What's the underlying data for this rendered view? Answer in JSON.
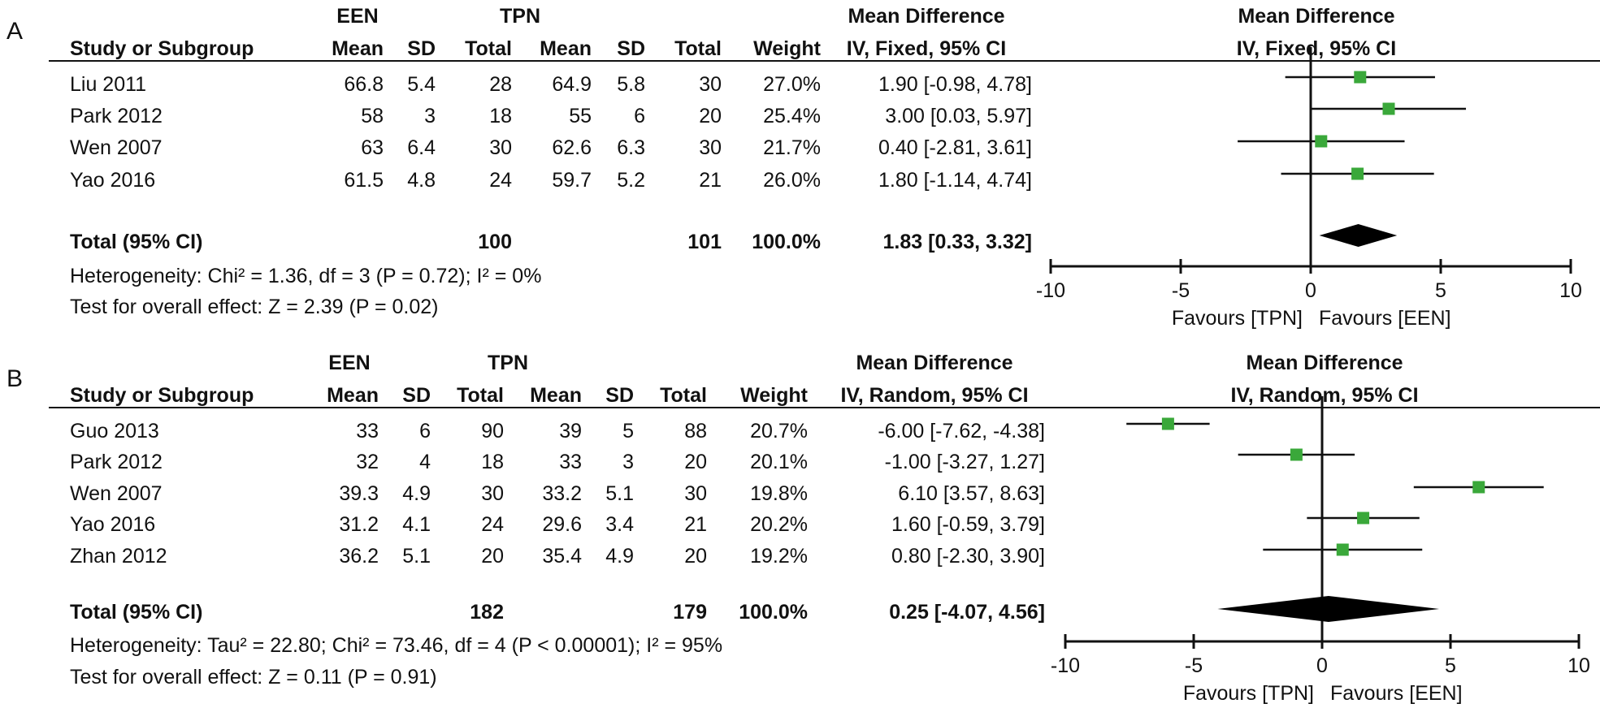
{
  "chart_data": [
    {
      "type": "forest",
      "panel_label": "A",
      "groups": {
        "experimental": "EEN",
        "control": "TPN"
      },
      "headers": {
        "study": "Study or Subgroup",
        "mean": "Mean",
        "sd": "SD",
        "total": "Total",
        "weight": "Weight",
        "effect_title": "Mean Difference",
        "effect_method": "IV, Fixed, 95% CI",
        "plot_title": "Mean Difference",
        "plot_method": "IV, Fixed, 95% CI"
      },
      "studies": [
        {
          "name": "Liu 2011",
          "een_mean": "66.8",
          "een_sd": "5.4",
          "een_total": "28",
          "tpn_mean": "64.9",
          "tpn_sd": "5.8",
          "tpn_total": "30",
          "weight": "27.0%",
          "ci_text": "1.90 [-0.98, 4.78]",
          "md": 1.9,
          "lo": -0.98,
          "hi": 4.78
        },
        {
          "name": "Park 2012",
          "een_mean": "58",
          "een_sd": "3",
          "een_total": "18",
          "tpn_mean": "55",
          "tpn_sd": "6",
          "tpn_total": "20",
          "weight": "25.4%",
          "ci_text": "3.00 [0.03, 5.97]",
          "md": 3.0,
          "lo": 0.03,
          "hi": 5.97
        },
        {
          "name": "Wen 2007",
          "een_mean": "63",
          "een_sd": "6.4",
          "een_total": "30",
          "tpn_mean": "62.6",
          "tpn_sd": "6.3",
          "tpn_total": "30",
          "weight": "21.7%",
          "ci_text": "0.40 [-2.81, 3.61]",
          "md": 0.4,
          "lo": -2.81,
          "hi": 3.61
        },
        {
          "name": "Yao 2016",
          "een_mean": "61.5",
          "een_sd": "4.8",
          "een_total": "24",
          "tpn_mean": "59.7",
          "tpn_sd": "5.2",
          "tpn_total": "21",
          "weight": "26.0%",
          "ci_text": "1.80 [-1.14, 4.74]",
          "md": 1.8,
          "lo": -1.14,
          "hi": 4.74
        }
      ],
      "total": {
        "label": "Total (95% CI)",
        "een_total": "100",
        "tpn_total": "101",
        "weight": "100.0%",
        "ci_text": "1.83 [0.33, 3.32]",
        "md": 1.83,
        "lo": 0.33,
        "hi": 3.32
      },
      "heterogeneity": "Heterogeneity: Chi² = 1.36, df = 3 (P = 0.72); I² = 0%",
      "overall_effect": "Test for overall effect: Z = 2.39 (P = 0.02)",
      "x_ticks": [
        -10,
        -5,
        0,
        5,
        10
      ],
      "xlim": [
        -10,
        10
      ],
      "favours_left": "Favours [TPN]",
      "favours_right": "Favours [EEN]",
      "marker_color": "#3aa83a"
    },
    {
      "type": "forest",
      "panel_label": "B",
      "groups": {
        "experimental": "EEN",
        "control": "TPN"
      },
      "headers": {
        "study": "Study or Subgroup",
        "mean": "Mean",
        "sd": "SD",
        "total": "Total",
        "weight": "Weight",
        "effect_title": "Mean Difference",
        "effect_method": "IV, Random, 95% CI",
        "plot_title": "Mean Difference",
        "plot_method": "IV, Random, 95% CI"
      },
      "studies": [
        {
          "name": "Guo 2013",
          "een_mean": "33",
          "een_sd": "6",
          "een_total": "90",
          "tpn_mean": "39",
          "tpn_sd": "5",
          "tpn_total": "88",
          "weight": "20.7%",
          "ci_text": "-6.00 [-7.62, -4.38]",
          "md": -6.0,
          "lo": -7.62,
          "hi": -4.38
        },
        {
          "name": "Park 2012",
          "een_mean": "32",
          "een_sd": "4",
          "een_total": "18",
          "tpn_mean": "33",
          "tpn_sd": "3",
          "tpn_total": "20",
          "weight": "20.1%",
          "ci_text": "-1.00 [-3.27, 1.27]",
          "md": -1.0,
          "lo": -3.27,
          "hi": 1.27
        },
        {
          "name": "Wen 2007",
          "een_mean": "39.3",
          "een_sd": "4.9",
          "een_total": "30",
          "tpn_mean": "33.2",
          "tpn_sd": "5.1",
          "tpn_total": "30",
          "weight": "19.8%",
          "ci_text": "6.10 [3.57, 8.63]",
          "md": 6.1,
          "lo": 3.57,
          "hi": 8.63
        },
        {
          "name": "Yao 2016",
          "een_mean": "31.2",
          "een_sd": "4.1",
          "een_total": "24",
          "tpn_mean": "29.6",
          "tpn_sd": "3.4",
          "tpn_total": "21",
          "weight": "20.2%",
          "ci_text": "1.60 [-0.59, 3.79]",
          "md": 1.6,
          "lo": -0.59,
          "hi": 3.79
        },
        {
          "name": "Zhan 2012",
          "een_mean": "36.2",
          "een_sd": "5.1",
          "een_total": "20",
          "tpn_mean": "35.4",
          "tpn_sd": "4.9",
          "tpn_total": "20",
          "weight": "19.2%",
          "ci_text": "0.80 [-2.30, 3.90]",
          "md": 0.8,
          "lo": -2.3,
          "hi": 3.9
        }
      ],
      "total": {
        "label": "Total (95% CI)",
        "een_total": "182",
        "tpn_total": "179",
        "weight": "100.0%",
        "ci_text": "0.25 [-4.07, 4.56]",
        "md": 0.25,
        "lo": -4.07,
        "hi": 4.56
      },
      "heterogeneity": "Heterogeneity: Tau² = 22.80; Chi² = 73.46, df = 4 (P < 0.00001); I² = 95%",
      "overall_effect": "Test for overall effect: Z = 0.11 (P = 0.91)",
      "x_ticks": [
        -10,
        -5,
        0,
        5,
        10
      ],
      "xlim": [
        -10,
        10
      ],
      "favours_left": "Favours [TPN]",
      "favours_right": "Favours [EEN]",
      "marker_color": "#3aa83a"
    }
  ]
}
